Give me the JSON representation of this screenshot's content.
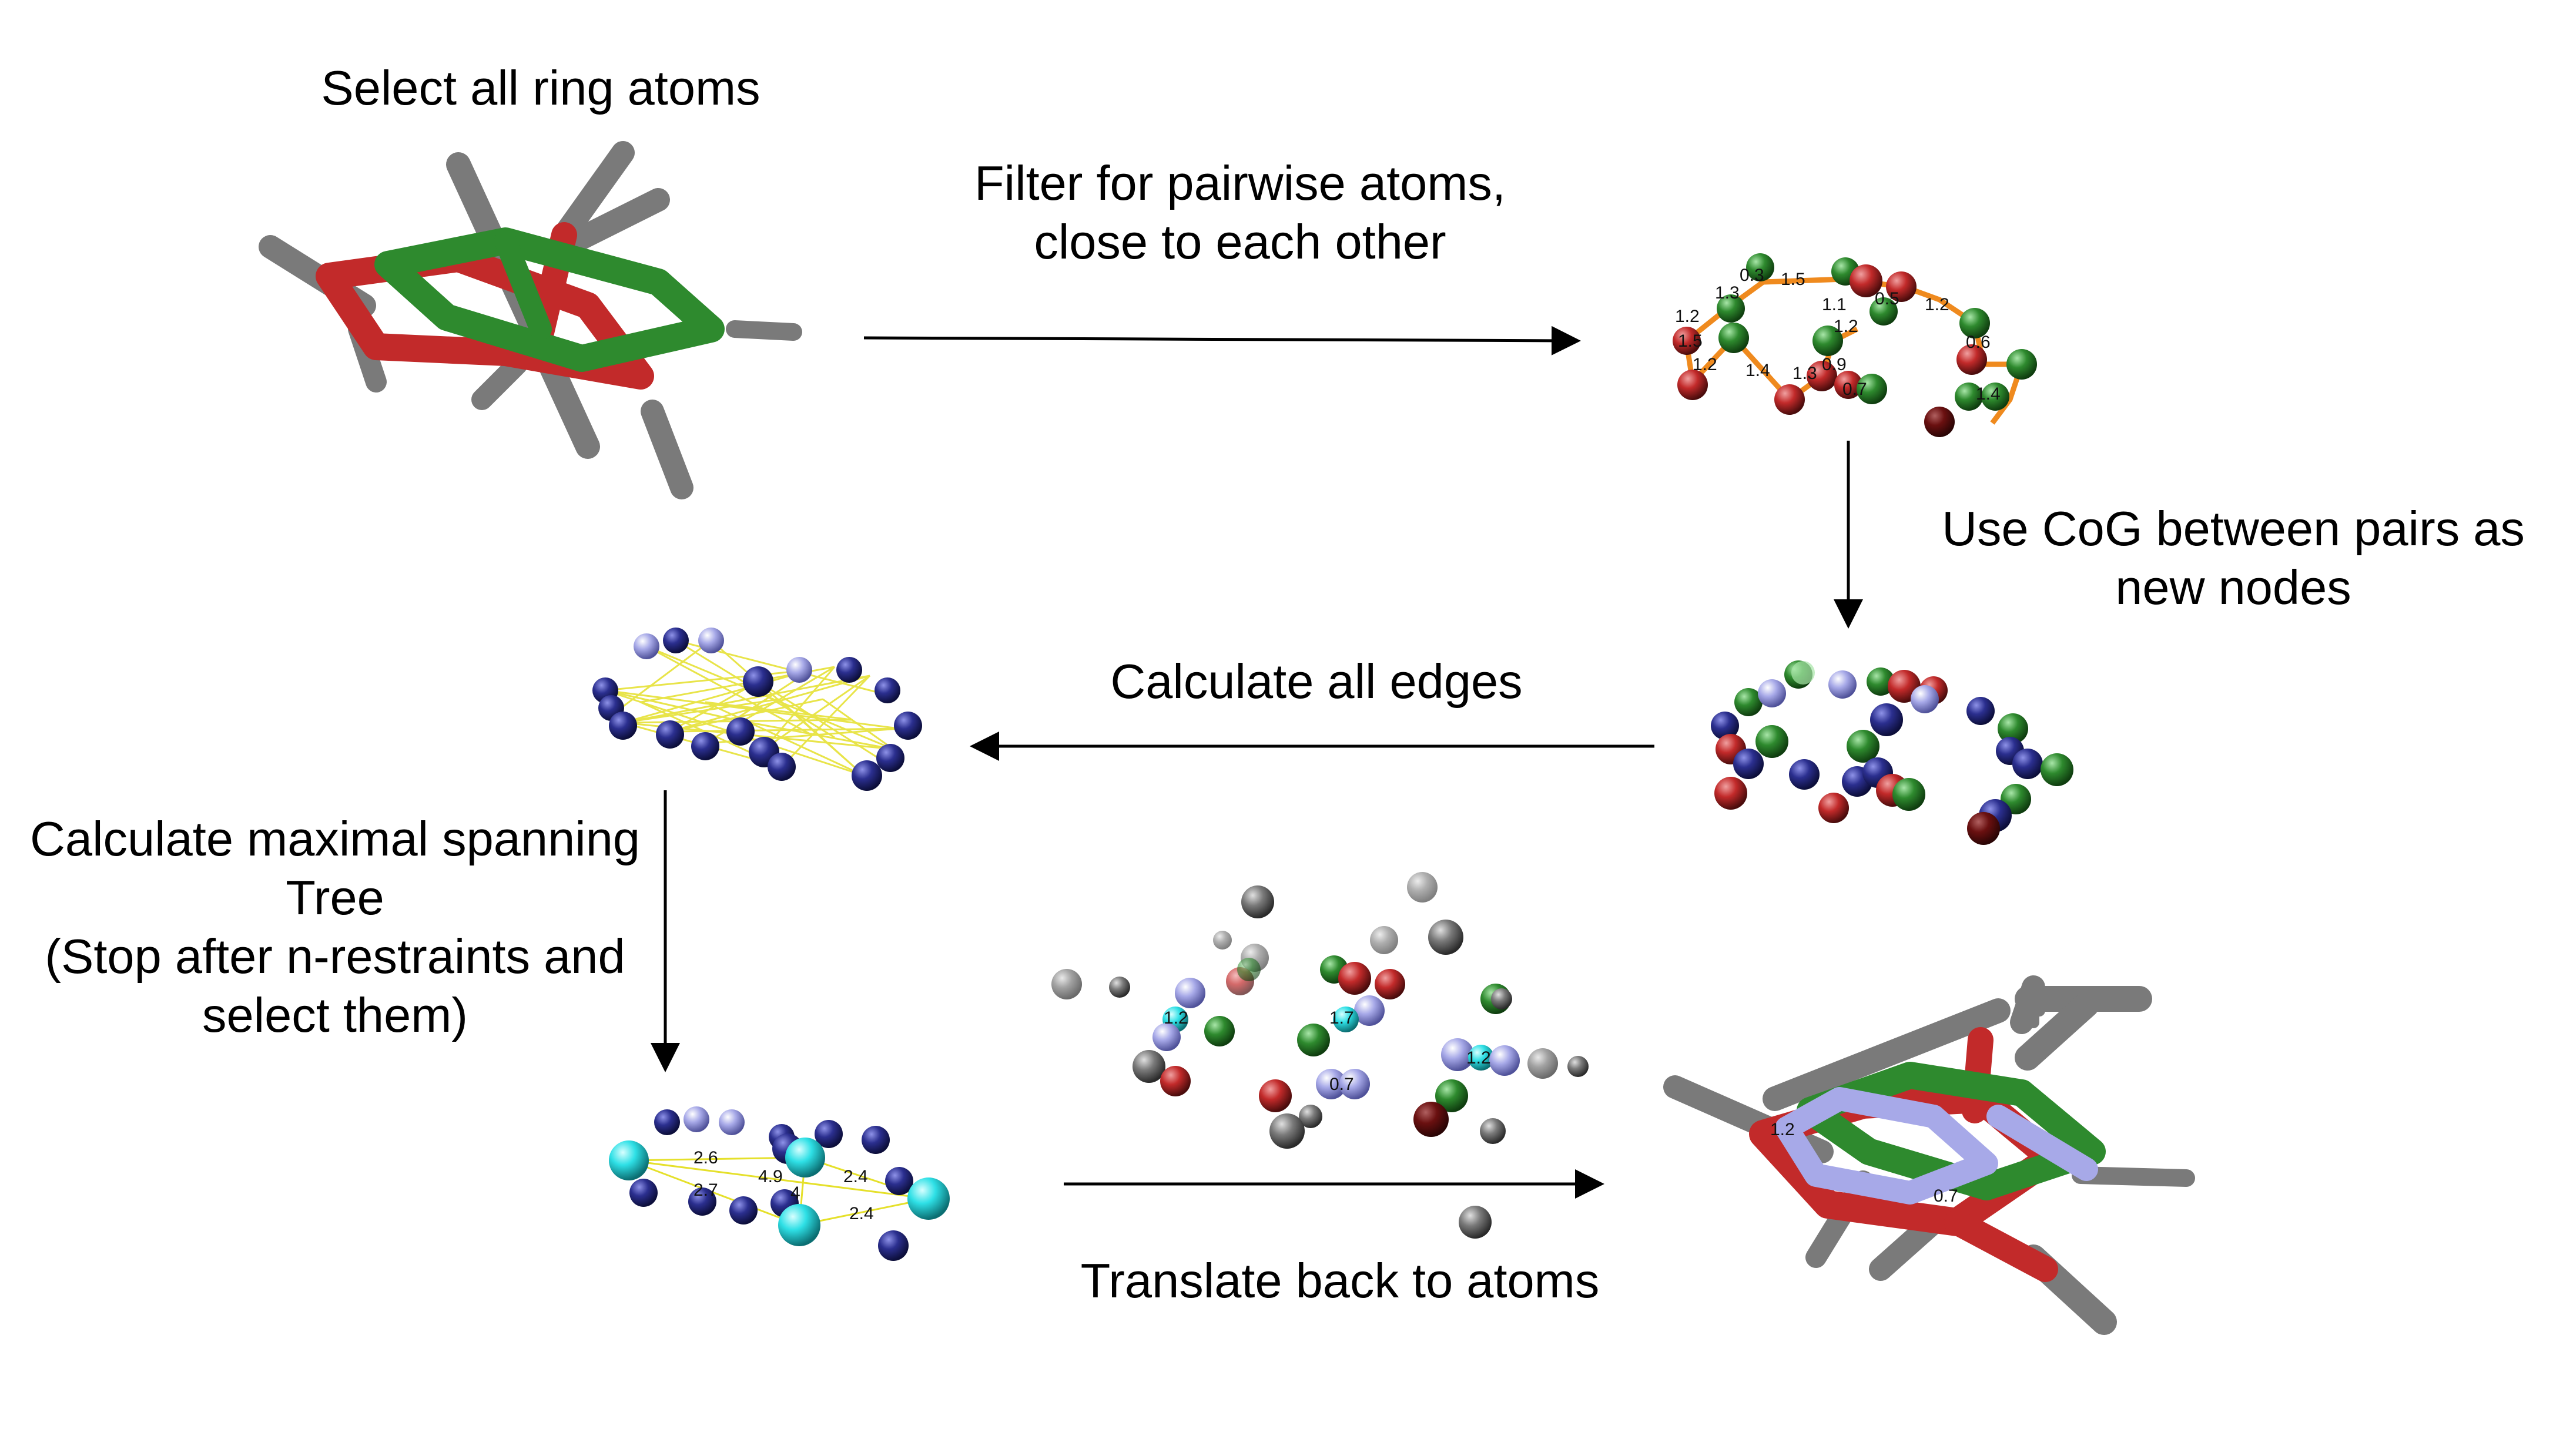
{
  "colors": {
    "carbon": "#2e8a2e",
    "oxygen": "#c22a2a",
    "hydrogen": "#7a7a7a",
    "node_blue": "#2b2f8f",
    "node_lightblue": "#a7a9e8",
    "node_cyan": "#2ee0e6",
    "edge_yellow": "#e5e02a",
    "edge_orange": "#ef8a1e",
    "arrow": "#000000"
  },
  "steps": {
    "select": {
      "title": "Select all ring atoms"
    },
    "filter": {
      "line1": "Filter for pairwise atoms,",
      "line2": "close to each other"
    },
    "cog": {
      "line1": "Use CoG between pairs as",
      "line2": "new nodes"
    },
    "edges": {
      "title": "Calculate all edges"
    },
    "spanning": {
      "line1": "Calculate maximal spanning",
      "line2": "Tree",
      "line3": "(Stop after n-restraints and",
      "line4": "select them)"
    },
    "translate": {
      "title": "Translate back to atoms"
    }
  },
  "labels": {
    "pair_distances": [
      "1.2",
      "1.3",
      "0.3",
      "1.5",
      "1.1",
      "0.5",
      "1.2",
      "1.5",
      "1.2",
      "1.2",
      "1.4",
      "1.3",
      "0.9",
      "0.7",
      "0.6",
      "1.4"
    ],
    "tree_weights": [
      "2.6",
      "2.7",
      "4.9",
      "4",
      "2.4",
      "2.4"
    ],
    "restraint_distances": [
      "1.2",
      "1.7",
      "0.7",
      "1.2"
    ],
    "final_distances": [
      "1.2",
      "0.7"
    ]
  }
}
